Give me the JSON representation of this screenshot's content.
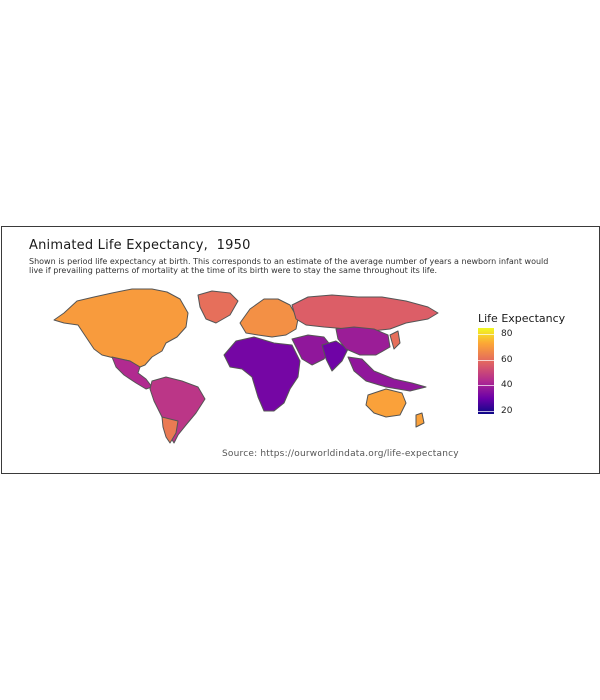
{
  "title": "Animated Life Expectancy,  1950",
  "subtitle": "Shown is period life expectancy at birth. This corresponds to an estimate of the average number of years a newborn infant would live if prevailing patterns of mortality at the time of its birth were to stay the same throughout its life.",
  "source": "Source: https://ourworldindata.org/life-expectancy",
  "legend": {
    "title": "Life Expectancy",
    "ticks": [
      "80",
      "60",
      "40",
      "20"
    ],
    "scale_min": 20,
    "scale_max": 85
  },
  "colors": {
    "orange": "#f89441",
    "rose": "#d5546e",
    "magenta": "#b12a90",
    "purple": "#8606a6",
    "deep": "#5302a3",
    "border": "#555555"
  },
  "chart_data": {
    "type": "choropleth",
    "year": "1950",
    "regions": [
      {
        "region": "North America",
        "life_expectancy": 68
      },
      {
        "region": "Greenland",
        "life_expectancy": 60
      },
      {
        "region": "Mexico & Central America",
        "life_expectancy": 48
      },
      {
        "region": "South America",
        "life_expectancy": 50
      },
      {
        "region": "Argentina",
        "life_expectancy": 62
      },
      {
        "region": "Europe",
        "life_expectancy": 66
      },
      {
        "region": "Russia",
        "life_expectancy": 57
      },
      {
        "region": "Africa",
        "life_expectancy": 37
      },
      {
        "region": "Middle East",
        "life_expectancy": 42
      },
      {
        "region": "India",
        "life_expectancy": 36
      },
      {
        "region": "China",
        "life_expectancy": 44
      },
      {
        "region": "Southeast Asia",
        "life_expectancy": 42
      },
      {
        "region": "Japan",
        "life_expectancy": 60
      },
      {
        "region": "Australia",
        "life_expectancy": 69
      },
      {
        "region": "New Zealand",
        "life_expectancy": 69
      }
    ]
  }
}
